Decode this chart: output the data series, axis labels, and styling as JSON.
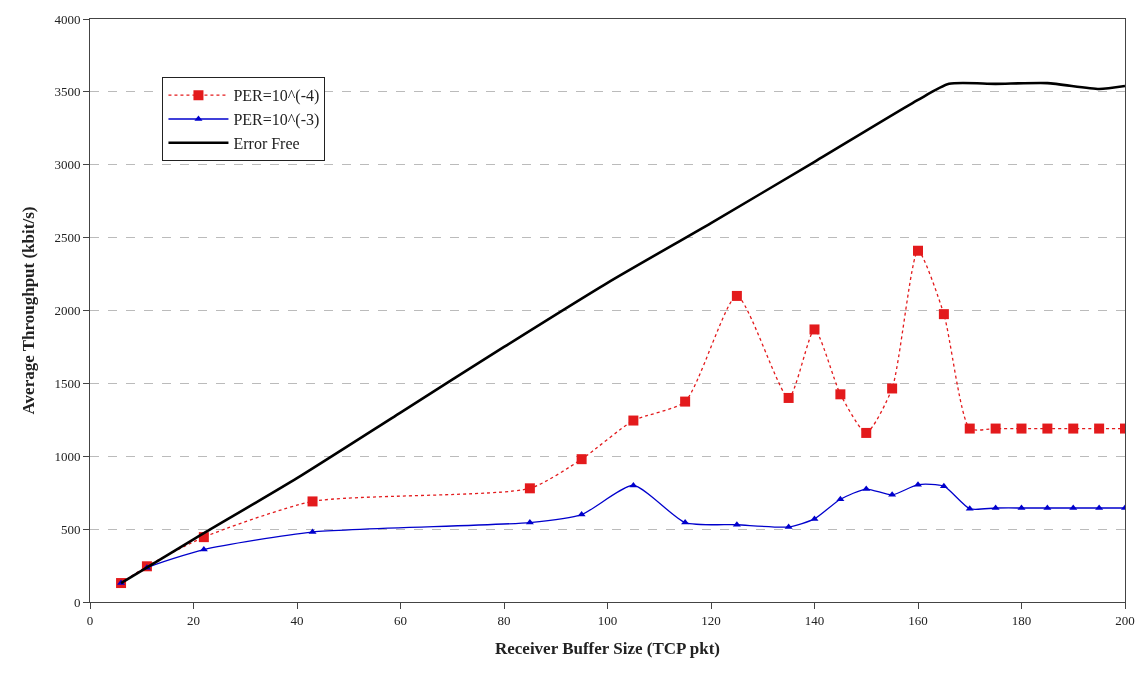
{
  "chart_data": {
    "type": "line",
    "xlabel": "Receiver Buffer Size (TCP pkt)",
    "ylabel": "Average Throughput (kbit/s)",
    "xlim": [
      0,
      200
    ],
    "xticks": [
      0,
      20,
      40,
      60,
      80,
      100,
      120,
      140,
      160,
      180,
      200
    ],
    "ylim": [
      0,
      4000
    ],
    "yticks": [
      0,
      500,
      1000,
      1500,
      2000,
      2500,
      3000,
      3500,
      4000
    ],
    "grid": "y",
    "legend": "top left",
    "series": [
      {
        "name": "PER=10^(-4)",
        "color": "#e31a1c",
        "marker": "square",
        "line_style": "dotted",
        "x": [
          6,
          11,
          22,
          43,
          85,
          95,
          105,
          115,
          125,
          135,
          140,
          145,
          150,
          155,
          160,
          165,
          170,
          175,
          180,
          185,
          190,
          195,
          200
        ],
        "values": [
          130,
          245,
          445,
          690,
          780,
          980,
          1245,
          1375,
          2100,
          1400,
          1870,
          1425,
          1160,
          1465,
          2410,
          1975,
          1190,
          1190,
          1190,
          1190,
          1190,
          1190,
          1190
        ]
      },
      {
        "name": "PER=10^(-3)",
        "color": "#0000cc",
        "marker": "triangle",
        "line_style": "solid",
        "x": [
          6,
          11,
          22,
          43,
          85,
          95,
          105,
          115,
          125,
          135,
          140,
          145,
          150,
          155,
          160,
          165,
          170,
          175,
          180,
          185,
          190,
          195,
          200
        ],
        "values": [
          130,
          235,
          360,
          480,
          545,
          600,
          800,
          545,
          530,
          515,
          570,
          705,
          775,
          735,
          805,
          795,
          640,
          645,
          645,
          645,
          645,
          645,
          645
        ]
      },
      {
        "name": "Error Free",
        "color": "#000000",
        "marker": "none",
        "line_style": "solid",
        "x": [
          6,
          20,
          40,
          60,
          80,
          100,
          120,
          140,
          160,
          166,
          175,
          185,
          195,
          200
        ],
        "values": [
          130,
          430,
          850,
          1300,
          1750,
          2190,
          2600,
          3020,
          3445,
          3555,
          3555,
          3560,
          3520,
          3540
        ]
      }
    ]
  }
}
